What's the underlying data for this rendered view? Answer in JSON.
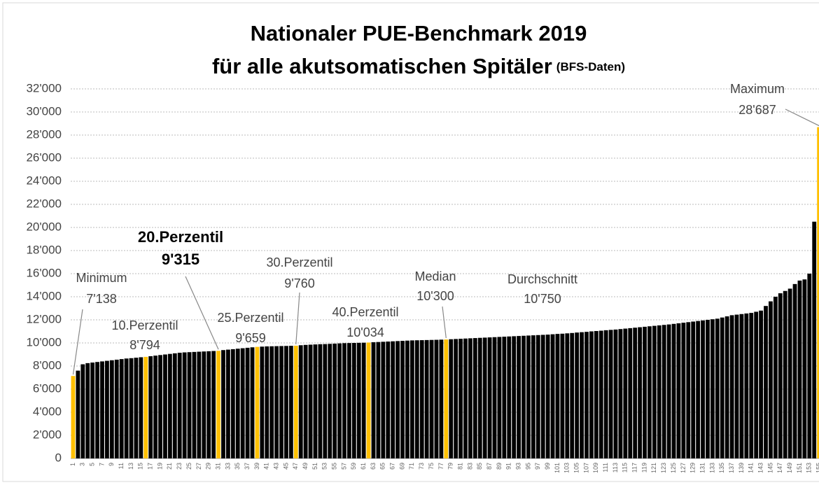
{
  "chart_data": {
    "type": "bar",
    "title": "Nationaler PUE-Benchmark 2019",
    "subtitle": "für alle akutsomatischen Spitäler",
    "subtitle_note": "(BFS-Daten)",
    "categories": [
      1,
      null,
      3,
      null,
      5,
      null,
      7,
      null,
      9,
      null,
      11,
      null,
      13,
      null,
      15,
      null,
      17,
      null,
      19,
      null,
      21,
      null,
      23,
      null,
      25,
      null,
      27,
      null,
      29,
      null,
      31,
      null,
      33,
      null,
      35,
      null,
      37,
      null,
      39,
      null,
      41,
      null,
      43,
      null,
      45,
      null,
      47,
      null,
      49,
      null,
      51,
      null,
      53,
      null,
      55,
      null,
      57,
      null,
      59,
      null,
      61,
      null,
      63,
      null,
      65,
      null,
      67,
      null,
      69,
      null,
      71,
      null,
      73,
      null,
      75,
      null,
      77,
      null,
      79,
      null,
      81,
      null,
      83,
      null,
      85,
      null,
      87,
      null,
      89,
      null,
      91,
      null,
      93,
      null,
      95,
      null,
      97,
      null,
      99,
      null,
      101,
      null,
      103,
      null,
      105,
      null,
      107,
      null,
      109,
      null,
      111,
      null,
      113,
      null,
      115,
      null,
      117,
      null,
      119,
      null,
      121,
      null,
      123,
      null,
      125,
      null,
      127,
      null,
      129,
      null,
      131,
      null,
      133,
      null,
      135,
      null,
      137,
      null,
      139,
      null,
      141,
      null,
      143,
      null,
      145,
      null,
      147,
      null,
      149,
      null,
      151,
      null,
      153,
      null,
      155
    ],
    "values": [
      7138,
      7600,
      8150,
      8250,
      8300,
      8350,
      8400,
      8450,
      8500,
      8550,
      8600,
      8650,
      8680,
      8720,
      8760,
      8794,
      8850,
      8900,
      8950,
      9000,
      9050,
      9100,
      9150,
      9180,
      9200,
      9220,
      9240,
      9260,
      9280,
      9300,
      9315,
      9380,
      9420,
      9460,
      9500,
      9540,
      9580,
      9620,
      9659,
      9680,
      9700,
      9710,
      9720,
      9730,
      9740,
      9750,
      9760,
      9800,
      9830,
      9850,
      9870,
      9890,
      9900,
      9920,
      9940,
      9960,
      9980,
      9990,
      10000,
      10010,
      10020,
      10034,
      10060,
      10080,
      10100,
      10120,
      10140,
      10160,
      10180,
      10200,
      10220,
      10230,
      10240,
      10250,
      10260,
      10270,
      10285,
      10300,
      10320,
      10340,
      10360,
      10380,
      10400,
      10420,
      10440,
      10460,
      10480,
      10500,
      10520,
      10540,
      10560,
      10580,
      10600,
      10620,
      10640,
      10660,
      10680,
      10700,
      10720,
      10750,
      10780,
      10800,
      10830,
      10860,
      10900,
      10930,
      10960,
      11000,
      11030,
      11060,
      11100,
      11130,
      11160,
      11200,
      11240,
      11280,
      11320,
      11360,
      11400,
      11440,
      11480,
      11520,
      11560,
      11600,
      11650,
      11700,
      11750,
      11800,
      11850,
      11900,
      11950,
      12000,
      12050,
      12100,
      12200,
      12300,
      12400,
      12450,
      12500,
      12550,
      12600,
      12700,
      12800,
      13200,
      13600,
      14000,
      14300,
      14500,
      14700,
      15100,
      15400,
      15500,
      16000,
      20500,
      28687
    ],
    "color": "#000000",
    "highlight_color": "#ffc000",
    "highlighted": [
      1,
      16,
      31,
      39,
      47,
      62,
      78,
      155
    ],
    "annotations": [
      {
        "text": "Minimum",
        "label": "7'138",
        "category": 1
      },
      {
        "text": "10.Perzentil",
        "label": "8'794",
        "category": 16
      },
      {
        "text": "20.Perzentil",
        "label": "9'315",
        "category": 31,
        "bold": true
      },
      {
        "text": "25.Perzentil",
        "label": "9'659",
        "category": 39
      },
      {
        "text": "30.Perzentil",
        "label": "9'760",
        "category": 47
      },
      {
        "text": "40.Perzentil",
        "label": "10'034",
        "category": 62
      },
      {
        "text": "Median",
        "label": "10'300",
        "category": 78
      },
      {
        "text": "Durchschnitt",
        "label": "10'750",
        "category": 98
      },
      {
        "text": "Maximum",
        "label": "28'687",
        "category": 155
      }
    ],
    "ylim": [
      0,
      32000
    ],
    "yticks": [
      0,
      {
        "value": 2000,
        "label": "2'000"
      },
      {
        "value": 4000,
        "label": "4'000"
      },
      {
        "value": 6000,
        "label": "6'000"
      },
      {
        "value": 8000,
        "label": "8'000"
      },
      {
        "value": 10000,
        "label": "10'000"
      },
      {
        "value": 12000,
        "label": "12'000"
      },
      {
        "value": 14000,
        "label": "14'000"
      },
      {
        "value": 16000,
        "label": "16'000"
      },
      {
        "value": 18000,
        "label": "18'000"
      },
      {
        "value": 20000,
        "label": "20'000"
      },
      {
        "value": 22000,
        "label": "22'000"
      },
      {
        "value": 24000,
        "label": "24'000"
      },
      {
        "value": 26000,
        "label": "26'000"
      },
      {
        "value": 28000,
        "label": "28'000"
      },
      {
        "value": 30000,
        "label": "30'000"
      },
      {
        "value": 32000,
        "label": "32'000"
      }
    ],
    "grid": true
  }
}
